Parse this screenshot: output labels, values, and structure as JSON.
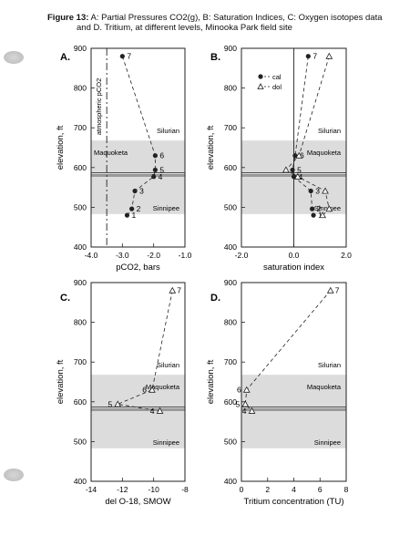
{
  "caption": {
    "figure_label": "Figure 13:",
    "line1": " A: Partial Pressures CO2(g),   B: Saturation Indices,   C: Oxygen isotopes data",
    "line2": "and    D. Tritium,    at different levels, Minooka Park field site"
  },
  "colors": {
    "shade": "#dcdcdc",
    "line": "#222222"
  },
  "chart_data": [
    {
      "type": "scatter",
      "panel": "A.",
      "xlabel": "pCO2, bars",
      "ylabel": "elevation, ft",
      "xlim": [
        -4.0,
        -1.0
      ],
      "ylim": [
        400,
        900
      ],
      "xticks": [
        "-4.0",
        "-3.0",
        "-2.0",
        "-1.0"
      ],
      "yticks": [
        "400",
        "500",
        "600",
        "700",
        "800",
        "900"
      ],
      "vertical_line": {
        "x": -3.5,
        "style": "dash-dot",
        "label": "atmospheric pCO2"
      },
      "zones": {
        "maquoketa": [
          483,
          668
        ],
        "interval": [
          579,
          587
        ]
      },
      "zone_labels": {
        "upper": "Silurian",
        "middle": "Maquoketa",
        "lower": "Sinnipee"
      },
      "series": [
        {
          "marker": "filled-circle",
          "points": [
            {
              "label": "7",
              "x": -3.0,
              "y": 880
            },
            {
              "label": "6",
              "x": -1.95,
              "y": 630
            },
            {
              "label": "5",
              "x": -1.95,
              "y": 594
            },
            {
              "label": "4",
              "x": -2.0,
              "y": 577
            },
            {
              "label": "3",
              "x": -2.6,
              "y": 541
            },
            {
              "label": "2",
              "x": -2.7,
              "y": 496
            },
            {
              "label": "1",
              "x": -2.85,
              "y": 480
            }
          ]
        }
      ]
    },
    {
      "type": "scatter",
      "panel": "B.",
      "xlabel": "saturation index",
      "ylabel": "elevation, ft",
      "xlim": [
        -2.0,
        2.0
      ],
      "ylim": [
        400,
        900
      ],
      "xticks": [
        "-2.0",
        "0.0",
        "2.0"
      ],
      "yticks": [
        "400",
        "500",
        "600",
        "700",
        "800",
        "900"
      ],
      "vertical_line": {
        "x": 0.0,
        "style": "solid"
      },
      "zones": {
        "maquoketa": [
          483,
          668
        ],
        "interval": [
          579,
          587
        ]
      },
      "zone_labels": {
        "upper": "Silurian",
        "middle": "Maquoketa",
        "lower": "Sinnipee"
      },
      "legend": [
        "cal",
        "dol"
      ],
      "legend_position": "top-left",
      "series": [
        {
          "name": "cal",
          "marker": "filled-circle",
          "points": [
            {
              "label": "7",
              "x": 0.55,
              "y": 880
            },
            {
              "label": "6",
              "x": 0.05,
              "y": 630
            },
            {
              "label": "5",
              "x": -0.05,
              "y": 594
            },
            {
              "label": "4",
              "x": 0.0,
              "y": 577
            },
            {
              "label": "3",
              "x": 0.65,
              "y": 541
            },
            {
              "label": "2",
              "x": 0.7,
              "y": 496
            },
            {
              "label": "1",
              "x": 0.75,
              "y": 480
            }
          ]
        },
        {
          "name": "dol",
          "marker": "open-triangle",
          "points": [
            {
              "x": 1.35,
              "y": 880
            },
            {
              "x": 0.2,
              "y": 630
            },
            {
              "x": -0.3,
              "y": 594
            },
            {
              "x": 0.15,
              "y": 577
            },
            {
              "x": 1.2,
              "y": 541
            },
            {
              "x": 1.35,
              "y": 496
            },
            {
              "x": 1.1,
              "y": 480
            }
          ]
        }
      ]
    },
    {
      "type": "scatter",
      "panel": "C.",
      "xlabel": "del O-18, SMOW",
      "ylabel": "elevation, ft",
      "xlim": [
        -14,
        -8
      ],
      "ylim": [
        400,
        900
      ],
      "xticks": [
        "-14",
        "-12",
        "-10",
        "-8"
      ],
      "yticks": [
        "400",
        "500",
        "600",
        "700",
        "800",
        "900"
      ],
      "zones": {
        "maquoketa": [
          483,
          668
        ],
        "interval": [
          579,
          587
        ]
      },
      "zone_labels": {
        "upper": "Silurian",
        "middle": "Maquoketa",
        "lower": "Sinnipee"
      },
      "series": [
        {
          "marker": "open-triangle",
          "points": [
            {
              "label": "7",
              "x": -8.8,
              "y": 880
            },
            {
              "label": "6",
              "x": -10.1,
              "y": 630
            },
            {
              "label": "5",
              "x": -12.3,
              "y": 594
            },
            {
              "label": "4",
              "x": -9.6,
              "y": 577
            }
          ]
        }
      ]
    },
    {
      "type": "scatter",
      "panel": "D.",
      "xlabel": "Tritium concentration (TU)",
      "ylabel": "elevation, ft",
      "xlim": [
        0,
        8
      ],
      "ylim": [
        400,
        900
      ],
      "xticks": [
        "0",
        "2",
        "4",
        "6",
        "8"
      ],
      "yticks": [
        "400",
        "500",
        "600",
        "700",
        "800",
        "900"
      ],
      "zones": {
        "maquoketa": [
          483,
          668
        ],
        "interval": [
          579,
          587
        ]
      },
      "zone_labels": {
        "upper": "Silurian",
        "middle": "Maquoketa",
        "lower": "Sinnipee"
      },
      "series": [
        {
          "marker": "open-triangle",
          "points": [
            {
              "label": "7",
              "x": 6.8,
              "y": 880
            },
            {
              "label": "6",
              "x": 0.4,
              "y": 630
            },
            {
              "label": "5",
              "x": 0.3,
              "y": 594
            },
            {
              "label": "4",
              "x": 0.8,
              "y": 577
            }
          ]
        }
      ]
    }
  ]
}
